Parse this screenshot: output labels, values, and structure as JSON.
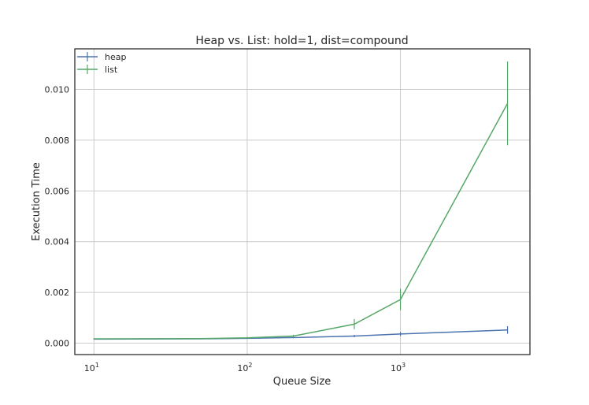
{
  "chart_data": {
    "type": "line",
    "title": "Heap vs. List: hold=1, dist=compound",
    "xlabel": "Queue Size",
    "ylabel": "Execution Time",
    "xscale": "log",
    "xlim": [
      7.5,
      7000
    ],
    "ylim": [
      -0.00045,
      0.0116
    ],
    "grid": true,
    "legend_position": "top-left",
    "x_ticks": [
      {
        "value": 10,
        "base": "10",
        "exp": "1"
      },
      {
        "value": 100,
        "base": "10",
        "exp": "2"
      },
      {
        "value": 1000,
        "base": "10",
        "exp": "3"
      }
    ],
    "y_ticks": [
      {
        "value": 0.0,
        "label": "0.000"
      },
      {
        "value": 0.002,
        "label": "0.002"
      },
      {
        "value": 0.004,
        "label": "0.004"
      },
      {
        "value": 0.006,
        "label": "0.006"
      },
      {
        "value": 0.008,
        "label": "0.008"
      },
      {
        "value": 0.01,
        "label": "0.010"
      }
    ],
    "series": [
      {
        "name": "heap",
        "color": "#4c72b0",
        "x": [
          10,
          50,
          100,
          200,
          500,
          1000,
          5000
        ],
        "y": [
          0.00016,
          0.00017,
          0.00019,
          0.00022,
          0.00028,
          0.00036,
          0.00052
        ],
        "err": [
          2e-05,
          2e-05,
          2e-05,
          3e-05,
          5e-05,
          8e-05,
          0.00015
        ]
      },
      {
        "name": "list",
        "color": "#55a868",
        "x": [
          10,
          50,
          100,
          200,
          500,
          1000,
          5000
        ],
        "y": [
          0.00017,
          0.00018,
          0.00021,
          0.00028,
          0.00075,
          0.00172,
          0.00945
        ],
        "err": [
          2e-05,
          2e-05,
          3e-05,
          5e-05,
          0.0002,
          0.00042,
          0.00165
        ]
      }
    ]
  }
}
